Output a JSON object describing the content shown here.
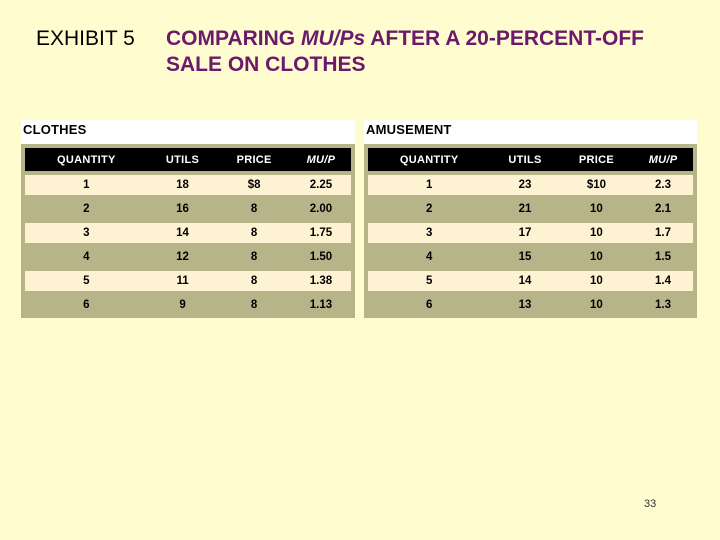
{
  "title": {
    "label": "EXHIBIT 5",
    "part1": "COMPARING ",
    "part_italic": "MU/Ps",
    "part2": " AFTER A 20-PERCENT-OFF SALE ON CLOTHES"
  },
  "tables": {
    "clothes": {
      "heading": "CLOTHES",
      "headers": [
        "QUANTITY",
        "UTILS",
        "PRICE",
        "MU/P"
      ],
      "rows": [
        [
          "1",
          "18",
          "$8",
          "2.25"
        ],
        [
          "2",
          "16",
          "8",
          "2.00"
        ],
        [
          "3",
          "14",
          "8",
          "1.75"
        ],
        [
          "4",
          "12",
          "8",
          "1.50"
        ],
        [
          "5",
          "11",
          "8",
          "1.38"
        ],
        [
          "6",
          "9",
          "8",
          "1.13"
        ]
      ]
    },
    "amusement": {
      "heading": "AMUSEMENT",
      "headers": [
        "QUANTITY",
        "UTILS",
        "PRICE",
        "MU/P"
      ],
      "rows": [
        [
          "1",
          "23",
          "$10",
          "2.3"
        ],
        [
          "2",
          "21",
          "10",
          "2.1"
        ],
        [
          "3",
          "17",
          "10",
          "1.7"
        ],
        [
          "4",
          "15",
          "10",
          "1.5"
        ],
        [
          "5",
          "14",
          "10",
          "1.4"
        ],
        [
          "6",
          "13",
          "10",
          "1.3"
        ]
      ]
    }
  },
  "page_number": "33",
  "colors": {
    "background": "#fffdd0",
    "title": "#6b1a6b",
    "row_light": "#fdf3d2",
    "row_dark": "#b8b48a",
    "header": "#000000"
  }
}
